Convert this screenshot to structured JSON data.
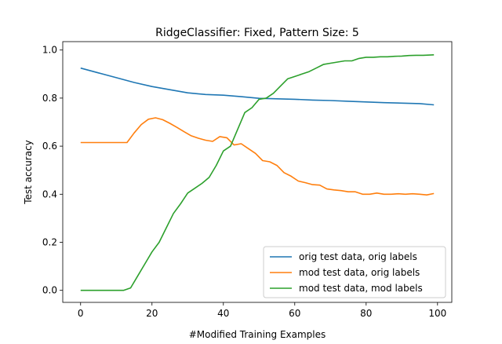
{
  "chart_data": {
    "type": "line",
    "title": "RidgeClassifier: Fixed, Pattern Size: 5",
    "xlabel": "#Modified Training Examples",
    "ylabel": "Test accuracy",
    "xlim": [
      -5,
      104
    ],
    "ylim": [
      -0.05,
      1.035
    ],
    "xticks": [
      0,
      20,
      40,
      60,
      80,
      100
    ],
    "yticks": [
      0.0,
      0.2,
      0.4,
      0.6,
      0.8,
      1.0
    ],
    "xtick_labels": [
      "0",
      "20",
      "40",
      "60",
      "80",
      "100"
    ],
    "ytick_labels": [
      "0.0",
      "0.2",
      "0.4",
      "0.6",
      "0.8",
      "1.0"
    ],
    "grid": false,
    "legend_position": "lower-right",
    "series": [
      {
        "name": "orig test data, orig labels",
        "color": "#1f77b4",
        "x": [
          0,
          5,
          10,
          15,
          20,
          25,
          30,
          35,
          40,
          45,
          50,
          55,
          60,
          65,
          70,
          75,
          80,
          85,
          90,
          95,
          99
        ],
        "y": [
          0.925,
          0.905,
          0.885,
          0.865,
          0.848,
          0.835,
          0.822,
          0.815,
          0.812,
          0.806,
          0.799,
          0.797,
          0.795,
          0.792,
          0.79,
          0.787,
          0.784,
          0.781,
          0.779,
          0.777,
          0.772
        ]
      },
      {
        "name": "mod test data, orig labels",
        "color": "#ff7f0e",
        "x": [
          0,
          5,
          10,
          13,
          15,
          17,
          19,
          21,
          23,
          25,
          27,
          29,
          31,
          33,
          35,
          37,
          39,
          41,
          43,
          45,
          47,
          49,
          51,
          53,
          55,
          57,
          59,
          61,
          63,
          65,
          67,
          69,
          71,
          73,
          75,
          77,
          79,
          81,
          83,
          85,
          87,
          89,
          91,
          93,
          95,
          97,
          99
        ],
        "y": [
          0.615,
          0.615,
          0.615,
          0.615,
          0.655,
          0.69,
          0.712,
          0.718,
          0.71,
          0.695,
          0.678,
          0.66,
          0.643,
          0.633,
          0.625,
          0.62,
          0.64,
          0.635,
          0.605,
          0.61,
          0.59,
          0.57,
          0.54,
          0.535,
          0.52,
          0.49,
          0.475,
          0.455,
          0.448,
          0.44,
          0.438,
          0.422,
          0.418,
          0.415,
          0.41,
          0.41,
          0.4,
          0.4,
          0.405,
          0.4,
          0.4,
          0.402,
          0.4,
          0.402,
          0.4,
          0.397,
          0.403
        ]
      },
      {
        "name": "mod test data, mod labels",
        "color": "#2ca02c",
        "x": [
          0,
          5,
          10,
          12,
          14,
          16,
          18,
          20,
          22,
          24,
          26,
          28,
          30,
          32,
          34,
          36,
          38,
          40,
          42,
          44,
          46,
          48,
          50,
          52,
          54,
          56,
          58,
          60,
          62,
          64,
          66,
          68,
          70,
          72,
          74,
          76,
          78,
          80,
          82,
          84,
          86,
          88,
          90,
          92,
          94,
          96,
          99
        ],
        "y": [
          0.0,
          0.0,
          0.0,
          0.0,
          0.01,
          0.06,
          0.11,
          0.16,
          0.2,
          0.26,
          0.32,
          0.36,
          0.405,
          0.425,
          0.445,
          0.47,
          0.52,
          0.58,
          0.6,
          0.67,
          0.74,
          0.76,
          0.795,
          0.8,
          0.82,
          0.85,
          0.88,
          0.89,
          0.9,
          0.91,
          0.925,
          0.94,
          0.945,
          0.95,
          0.955,
          0.955,
          0.965,
          0.97,
          0.97,
          0.972,
          0.972,
          0.974,
          0.975,
          0.977,
          0.978,
          0.978,
          0.98
        ]
      }
    ]
  }
}
